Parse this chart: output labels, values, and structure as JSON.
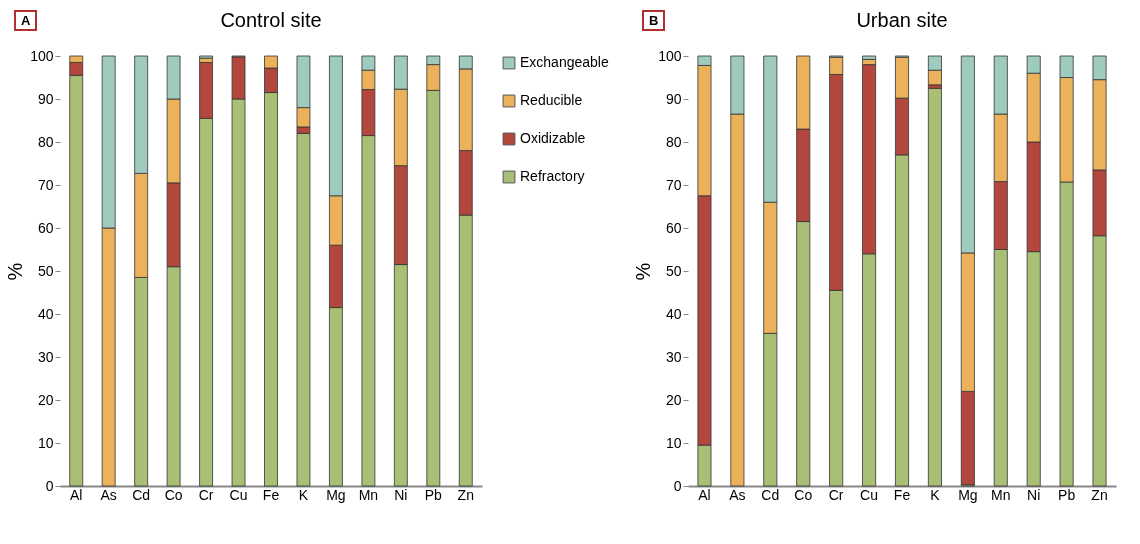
{
  "chart_data": [
    {
      "type": "bar",
      "title": "Control site",
      "ylabel": "%",
      "annotations": [
        "A"
      ],
      "stacked": true,
      "legend": "right",
      "grid": false,
      "categories": [
        "Al",
        "As",
        "Cd",
        "Co",
        "Cr",
        "Cu",
        "Fe",
        "K",
        "Mg",
        "Mn",
        "Ni",
        "Pb",
        "Zn"
      ],
      "ylim": [
        0,
        100
      ],
      "yticks": [
        0,
        10,
        20,
        30,
        40,
        50,
        60,
        70,
        80,
        90,
        100
      ],
      "series": [
        {
          "name": "Refractory",
          "color": "#a9bf75",
          "values": [
            95.5,
            0,
            48.5,
            51,
            85.5,
            90,
            91.5,
            82,
            41.5,
            81.5,
            51.5,
            92,
            63
          ]
        },
        {
          "name": "Oxidizable",
          "color": "#b2473e",
          "values": [
            3,
            0,
            0,
            19.5,
            13,
            9.8,
            5.7,
            1.5,
            14.5,
            10.7,
            23,
            0,
            15
          ]
        },
        {
          "name": "Reducible",
          "color": "#ebb15b",
          "values": [
            1.5,
            60,
            24.2,
            19.5,
            1,
            0,
            2.8,
            4.5,
            11.5,
            4.5,
            17.8,
            6,
            19
          ]
        },
        {
          "name": "Exchangeable",
          "color": "#9fcbbf",
          "values": [
            0,
            40,
            27.3,
            10,
            0.5,
            0.2,
            0,
            12,
            32.5,
            3.3,
            7.7,
            2,
            3
          ]
        }
      ]
    },
    {
      "type": "bar",
      "title": "Urban site",
      "ylabel": "%",
      "annotations": [
        "B"
      ],
      "stacked": true,
      "legend": false,
      "grid": false,
      "categories": [
        "Al",
        "As",
        "Cd",
        "Co",
        "Cr",
        "Cu",
        "Fe",
        "K",
        "Mg",
        "Mn",
        "Ni",
        "Pb",
        "Zn"
      ],
      "ylim": [
        0,
        100
      ],
      "yticks": [
        0,
        10,
        20,
        30,
        40,
        50,
        60,
        70,
        80,
        90,
        100
      ],
      "series": [
        {
          "color": "#a9bf75",
          "values": [
            9.5,
            0,
            35.5,
            61.5,
            45.5,
            54,
            77,
            92.5,
            0.3,
            55,
            54.5,
            70.7,
            58.2
          ]
        },
        {
          "color": "#b2473e",
          "values": [
            58,
            0,
            0,
            21.5,
            50.2,
            44,
            13.2,
            0.8,
            21.7,
            15.8,
            25.5,
            0,
            15.3
          ]
        },
        {
          "color": "#ebb15b",
          "values": [
            30.3,
            86.5,
            30.5,
            17,
            4,
            1.2,
            9.5,
            3.4,
            32.2,
            15.7,
            16,
            24.3,
            21
          ]
        },
        {
          "color": "#9fcbbf",
          "values": [
            2.2,
            13.5,
            34,
            0,
            0.3,
            0.8,
            0.3,
            3.3,
            45.8,
            13.5,
            4,
            5,
            5.5
          ]
        }
      ]
    }
  ]
}
